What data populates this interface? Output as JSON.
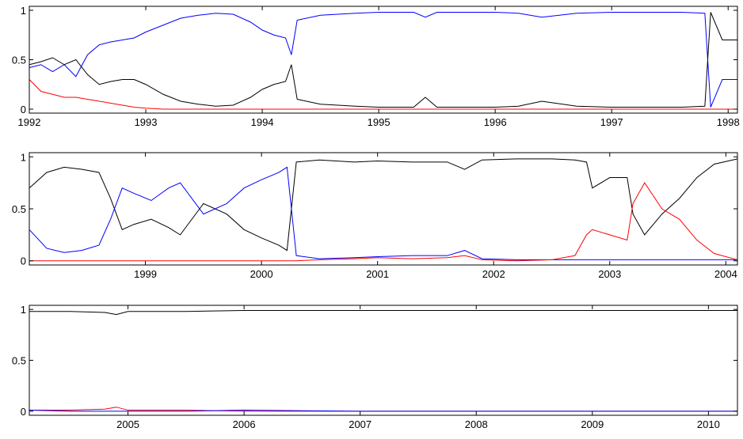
{
  "chart_data": [
    {
      "type": "line",
      "x": [
        1992,
        1992.1,
        1992.2,
        1992.3,
        1992.4,
        1992.5,
        1992.6,
        1992.7,
        1992.8,
        1992.9,
        1993.0,
        1993.15,
        1993.3,
        1993.45,
        1993.6,
        1993.75,
        1993.9,
        1994.0,
        1994.1,
        1994.2,
        1994.25,
        1994.3,
        1994.5,
        1994.8,
        1995.0,
        1995.3,
        1995.4,
        1995.5,
        1995.8,
        1996.0,
        1996.2,
        1996.4,
        1996.7,
        1997.0,
        1997.3,
        1997.6,
        1997.8,
        1997.85,
        1997.95,
        1998.08
      ],
      "series": [
        {
          "color": "#0000ff",
          "values": [
            0.42,
            0.45,
            0.38,
            0.45,
            0.33,
            0.55,
            0.65,
            0.68,
            0.7,
            0.72,
            0.78,
            0.85,
            0.92,
            0.95,
            0.97,
            0.96,
            0.88,
            0.8,
            0.75,
            0.72,
            0.55,
            0.9,
            0.95,
            0.97,
            0.98,
            0.98,
            0.93,
            0.98,
            0.98,
            0.98,
            0.97,
            0.93,
            0.97,
            0.98,
            0.98,
            0.98,
            0.97,
            0.02,
            0.3,
            0.3
          ]
        },
        {
          "color": "#000000",
          "values": [
            0.45,
            0.48,
            0.52,
            0.45,
            0.5,
            0.35,
            0.25,
            0.28,
            0.3,
            0.3,
            0.25,
            0.15,
            0.08,
            0.05,
            0.03,
            0.04,
            0.12,
            0.2,
            0.25,
            0.28,
            0.45,
            0.1,
            0.05,
            0.03,
            0.02,
            0.02,
            0.12,
            0.02,
            0.02,
            0.02,
            0.03,
            0.08,
            0.03,
            0.02,
            0.02,
            0.02,
            0.03,
            0.98,
            0.7,
            0.7
          ]
        },
        {
          "color": "#ff0000",
          "values": [
            0.3,
            0.18,
            0.15,
            0.12,
            0.12,
            0.1,
            0.08,
            0.06,
            0.04,
            0.02,
            0.01,
            0,
            0,
            0,
            0,
            0,
            0,
            0,
            0,
            0,
            0,
            0,
            0,
            0,
            0,
            0,
            0,
            0,
            0,
            0,
            0,
            0,
            0,
            0,
            0,
            0,
            0,
            0,
            0,
            0
          ]
        }
      ],
      "xlim": [
        1992,
        1998.08
      ],
      "xticks": [
        1992,
        1993,
        1994,
        1995,
        1996,
        1997,
        1998
      ],
      "ylim": [
        -0.04,
        1.04
      ],
      "yticks": [
        0,
        0.5,
        1
      ]
    },
    {
      "type": "line",
      "x": [
        1998.0,
        1998.15,
        1998.3,
        1998.45,
        1998.6,
        1998.7,
        1998.8,
        1998.9,
        1999.05,
        1999.2,
        1999.3,
        1999.5,
        1999.7,
        1999.85,
        2000.0,
        2000.15,
        2000.22,
        2000.3,
        2000.5,
        2000.8,
        2001.0,
        2001.3,
        2001.6,
        2001.75,
        2001.9,
        2002.2,
        2002.5,
        2002.7,
        2002.8,
        2002.85,
        2003.0,
        2003.15,
        2003.2,
        2003.3,
        2003.45,
        2003.6,
        2003.75,
        2003.9,
        2004.1
      ],
      "series": [
        {
          "color": "#000000",
          "values": [
            0.7,
            0.85,
            0.9,
            0.88,
            0.85,
            0.6,
            0.3,
            0.35,
            0.4,
            0.32,
            0.25,
            0.55,
            0.45,
            0.3,
            0.22,
            0.15,
            0.1,
            0.95,
            0.97,
            0.95,
            0.96,
            0.95,
            0.95,
            0.88,
            0.97,
            0.98,
            0.98,
            0.97,
            0.95,
            0.7,
            0.8,
            0.8,
            0.45,
            0.25,
            0.45,
            0.6,
            0.8,
            0.93,
            0.98
          ]
        },
        {
          "color": "#0000ff",
          "values": [
            0.3,
            0.12,
            0.08,
            0.1,
            0.15,
            0.4,
            0.7,
            0.65,
            0.58,
            0.7,
            0.75,
            0.45,
            0.55,
            0.7,
            0.78,
            0.85,
            0.9,
            0.05,
            0.02,
            0.03,
            0.04,
            0.05,
            0.05,
            0.1,
            0.02,
            0.01,
            0.01,
            0.01,
            0.01,
            0.01,
            0.01,
            0.01,
            0.01,
            0.01,
            0.01,
            0.01,
            0.01,
            0.01,
            0.01
          ]
        },
        {
          "color": "#ff0000",
          "values": [
            0,
            0,
            0,
            0,
            0,
            0,
            0,
            0,
            0,
            0,
            0,
            0,
            0,
            0,
            0,
            0,
            0,
            0,
            0.01,
            0.02,
            0.03,
            0.02,
            0.03,
            0.05,
            0.01,
            0,
            0.01,
            0.05,
            0.25,
            0.3,
            0.25,
            0.2,
            0.55,
            0.75,
            0.5,
            0.4,
            0.2,
            0.07,
            0.01
          ]
        }
      ],
      "xlim": [
        1998.0,
        2004.1
      ],
      "xticks": [
        1999,
        2000,
        2001,
        2002,
        2003,
        2004
      ],
      "ylim": [
        -0.04,
        1.04
      ],
      "yticks": [
        0,
        0.5,
        1
      ]
    },
    {
      "type": "line",
      "x": [
        2004.15,
        2004.5,
        2004.8,
        2004.9,
        2005.0,
        2005.5,
        2006,
        2007,
        2008,
        2009,
        2010,
        2010.25
      ],
      "series": [
        {
          "color": "#000000",
          "values": [
            0.98,
            0.98,
            0.97,
            0.95,
            0.98,
            0.98,
            0.99,
            0.99,
            0.99,
            0.99,
            0.99,
            0.99
          ]
        },
        {
          "color": "#ff0000",
          "values": [
            0.01,
            0.01,
            0.02,
            0.04,
            0.01,
            0.01,
            0,
            0,
            0,
            0,
            0,
            0
          ]
        },
        {
          "color": "#0000ff",
          "values": [
            0.01,
            0,
            0,
            0,
            0,
            0,
            0.01,
            0,
            0,
            0,
            0,
            0
          ]
        }
      ],
      "xlim": [
        2004.15,
        2010.25
      ],
      "xticks": [
        2005,
        2006,
        2007,
        2008,
        2009,
        2010
      ],
      "ylim": [
        -0.04,
        1.04
      ],
      "yticks": [
        0,
        0.5,
        1
      ]
    }
  ]
}
